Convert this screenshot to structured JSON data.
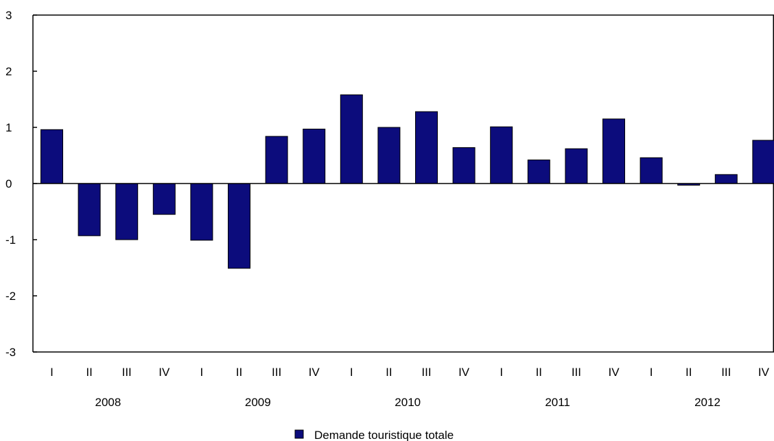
{
  "chart_data": {
    "type": "bar",
    "categories": [
      "I",
      "II",
      "III",
      "IV",
      "I",
      "II",
      "III",
      "IV",
      "I",
      "II",
      "III",
      "IV",
      "I",
      "II",
      "III",
      "IV",
      "I",
      "II",
      "III",
      "IV"
    ],
    "years": [
      "2008",
      "2009",
      "2010",
      "2011",
      "2012"
    ],
    "series": [
      {
        "name": "Demande touristique totale",
        "values": [
          0.96,
          -0.93,
          -1.0,
          -0.55,
          -1.01,
          -1.51,
          0.84,
          0.97,
          1.58,
          1.0,
          1.28,
          0.64,
          1.01,
          0.42,
          0.62,
          1.15,
          0.46,
          -0.03,
          0.16,
          0.77
        ]
      }
    ],
    "ylim": [
      -3,
      3
    ],
    "yticks": [
      "3",
      "2",
      "1",
      "0",
      "-1",
      "-2",
      "-3"
    ],
    "grid": false,
    "legend_position": "bottom-center",
    "colors": {
      "bar": "#0c0c7c",
      "bar_outline": "#000000"
    }
  }
}
